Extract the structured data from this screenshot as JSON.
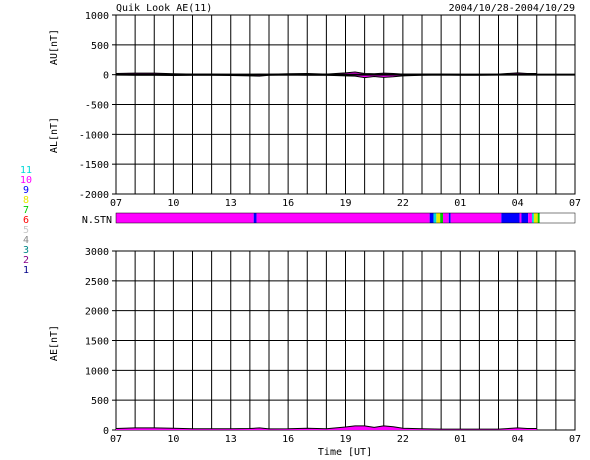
{
  "header": {
    "title": "Quik Look AE(11)",
    "date_range": "2004/10/28-2004/10/29"
  },
  "station_legend": {
    "label": "N.STN",
    "entries": [
      {
        "num": "11",
        "color": "#00d8d8"
      },
      {
        "num": "10",
        "color": "#ff00ff"
      },
      {
        "num": "9",
        "color": "#0000ff"
      },
      {
        "num": "8",
        "color": "#e8e800"
      },
      {
        "num": "7",
        "color": "#00cc00"
      },
      {
        "num": "6",
        "color": "#ff0000"
      },
      {
        "num": "5",
        "color": "#c8c8c8"
      },
      {
        "num": "4",
        "color": "#888888"
      },
      {
        "num": "3",
        "color": "#008888"
      },
      {
        "num": "2",
        "color": "#880088"
      },
      {
        "num": "1",
        "color": "#000088"
      }
    ]
  },
  "chart_data": [
    {
      "type": "line",
      "ylabel_top": "AU[nT]",
      "ylabel_bottom": "AL[nT]",
      "ylim": [
        -2000,
        1000
      ],
      "yticks": [
        1000,
        500,
        0,
        -500,
        -1000,
        -1500,
        -2000
      ],
      "xlim": [
        0,
        24
      ],
      "xtick_labels": [
        "07",
        "10",
        "13",
        "16",
        "19",
        "22",
        "01",
        "04",
        "07"
      ],
      "grid": true,
      "series": [
        {
          "key": "AU",
          "color": "#ff00ff",
          "x": [
            0,
            1,
            2,
            3,
            4,
            5,
            6,
            7,
            7.5,
            8,
            9,
            10,
            11,
            12,
            12.5,
            13,
            13.5,
            14,
            14.5,
            15,
            16,
            17,
            18,
            19,
            20,
            21,
            21.5,
            22
          ],
          "y": [
            20,
            25,
            25,
            15,
            10,
            10,
            5,
            5,
            10,
            8,
            15,
            20,
            10,
            30,
            45,
            20,
            15,
            25,
            20,
            10,
            10,
            10,
            5,
            5,
            10,
            30,
            20,
            20
          ]
        },
        {
          "key": "AL",
          "color": "#ff00ff",
          "x": [
            0,
            1,
            2,
            3,
            4,
            5,
            6,
            7,
            7.5,
            8,
            9,
            10,
            11,
            12,
            12.5,
            13,
            13.5,
            14,
            14.5,
            15,
            16,
            17,
            18,
            19,
            20,
            21,
            21.5,
            22
          ],
          "y": [
            -5,
            -10,
            -10,
            -15,
            -10,
            -10,
            -15,
            -20,
            -25,
            -10,
            -5,
            -10,
            -10,
            -20,
            -25,
            -50,
            -30,
            -45,
            -35,
            -20,
            -10,
            -5,
            -10,
            -10,
            -5,
            -5,
            -5,
            -5
          ]
        }
      ]
    },
    {
      "type": "line",
      "ylabel": "AE[nT]",
      "xlabel": "Time [UT]",
      "ylim": [
        0,
        3000
      ],
      "yticks": [
        3000,
        2500,
        2000,
        1500,
        1000,
        500,
        0
      ],
      "xlim": [
        0,
        24
      ],
      "xtick_labels": [
        "07",
        "10",
        "13",
        "16",
        "19",
        "22",
        "01",
        "04",
        "07"
      ],
      "grid": true,
      "series": [
        {
          "key": "AE",
          "color": "#ff00ff",
          "x": [
            0,
            1,
            2,
            3,
            4,
            5,
            6,
            7,
            7.5,
            8,
            9,
            10,
            11,
            12,
            12.5,
            13,
            13.5,
            14,
            14.5,
            15,
            16,
            17,
            18,
            19,
            20,
            21,
            21.5,
            22
          ],
          "y": [
            25,
            35,
            35,
            30,
            20,
            20,
            20,
            25,
            35,
            18,
            20,
            30,
            20,
            50,
            70,
            70,
            45,
            70,
            55,
            30,
            20,
            15,
            15,
            15,
            15,
            35,
            25,
            25
          ]
        }
      ]
    },
    {
      "type": "heatmap",
      "label": "N.STN",
      "xlim": [
        0,
        24
      ],
      "segments": [
        {
          "start": 0,
          "end": 7.2,
          "count": 10
        },
        {
          "start": 7.2,
          "end": 7.35,
          "count": 9
        },
        {
          "start": 7.35,
          "end": 16.4,
          "count": 10
        },
        {
          "start": 16.4,
          "end": 16.6,
          "count": 9
        },
        {
          "start": 16.6,
          "end": 16.75,
          "count": 11
        },
        {
          "start": 16.75,
          "end": 16.95,
          "count": 8
        },
        {
          "start": 16.95,
          "end": 17.1,
          "count": 7
        },
        {
          "start": 17.1,
          "end": 17.4,
          "count": 10
        },
        {
          "start": 17.4,
          "end": 17.5,
          "count": 9
        },
        {
          "start": 17.5,
          "end": 20.15,
          "count": 10
        },
        {
          "start": 20.15,
          "end": 21.1,
          "count": 9
        },
        {
          "start": 21.1,
          "end": 21.2,
          "count": 10
        },
        {
          "start": 21.2,
          "end": 21.55,
          "count": 9
        },
        {
          "start": 21.55,
          "end": 21.75,
          "count": 10
        },
        {
          "start": 21.75,
          "end": 21.85,
          "count": 11
        },
        {
          "start": 21.85,
          "end": 22.05,
          "count": 8
        },
        {
          "start": 22.05,
          "end": 22.15,
          "count": 7
        }
      ]
    }
  ]
}
